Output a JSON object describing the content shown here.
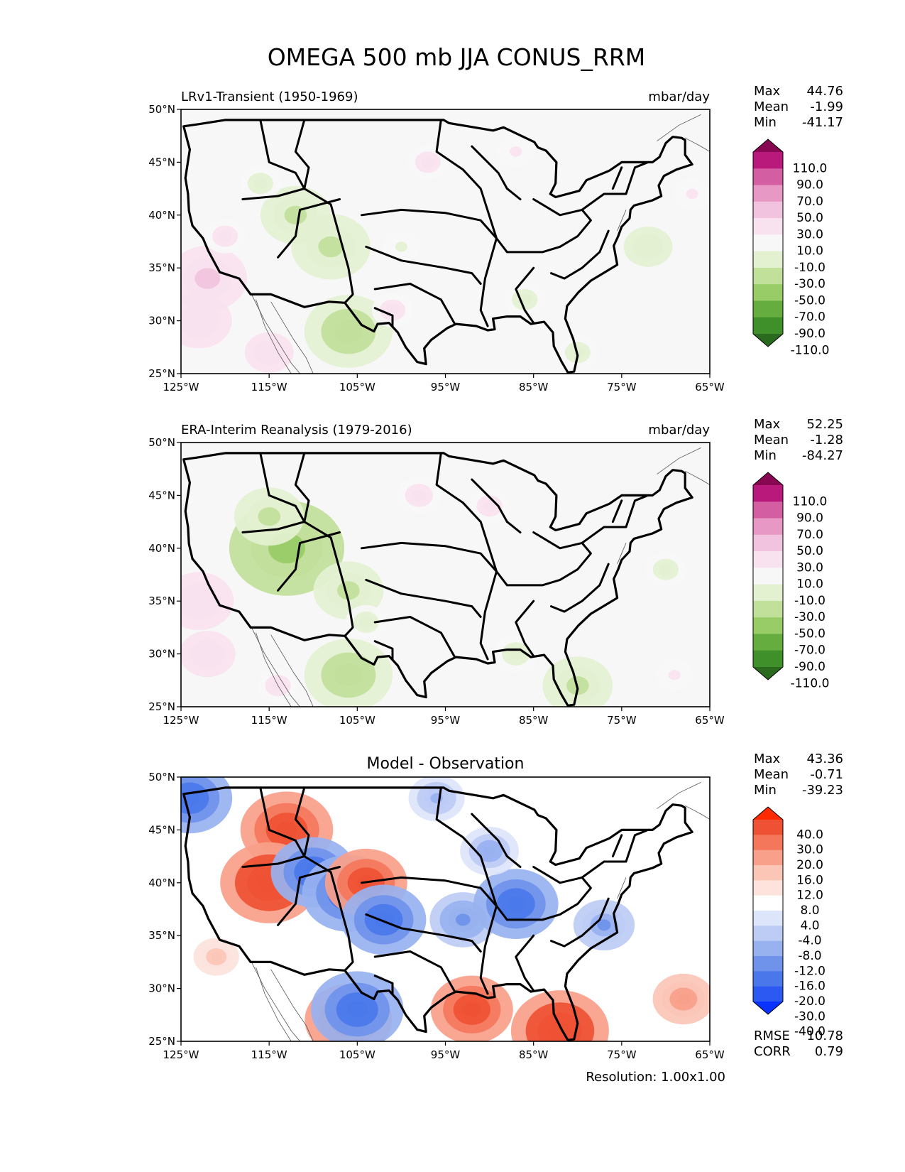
{
  "title": "OMEGA 500 mb JJA CONUS_RRM",
  "resolution": "Resolution: 1.00x1.00",
  "stat_labels": {
    "max": "Max",
    "mean": "Mean",
    "min": "Min",
    "rmse": "RMSE",
    "corr": "CORR"
  },
  "axes": {
    "lon_ticks": [
      "125°W",
      "115°W",
      "105°W",
      "95°W",
      "85°W",
      "75°W",
      "65°W"
    ],
    "lat_ticks": [
      "50°N",
      "45°N",
      "40°N",
      "35°N",
      "30°N",
      "25°N"
    ]
  },
  "colors": {
    "abs_cmap": [
      "#2a6a1f",
      "#3f8f2a",
      "#65ad3f",
      "#98cc67",
      "#c1e09a",
      "#e3f1d1",
      "#f7f7f7",
      "#f9e2ef",
      "#f2c3de",
      "#e898c4",
      "#d45ea2",
      "#b9197b",
      "#870753"
    ],
    "diff_cmap": [
      "#0a32ff",
      "#2b59f2",
      "#4a78ea",
      "#6f93eb",
      "#98b2f0",
      "#bdccf5",
      "#dde5fa",
      "#ffffff",
      "#fde3dc",
      "#fbc6b6",
      "#f8a08a",
      "#f4775c",
      "#ef5134",
      "#ff2a00"
    ],
    "land_line": "#000000",
    "coast_line": "#555555"
  },
  "chart_data": [
    {
      "type": "heatmap",
      "title": "LRv1-Transient (1950-1969)",
      "units": "mbar/day",
      "xlim": [
        -125,
        -65
      ],
      "ylim": [
        25,
        50
      ],
      "stats": {
        "max": "44.76",
        "mean": "-1.99",
        "min": "-41.17"
      },
      "colorbar_ticks": [
        "110.0",
        "90.0",
        "70.0",
        "50.0",
        "30.0",
        "10.0",
        "-10.0",
        "-30.0",
        "-50.0",
        "-70.0",
        "-90.0",
        "-110.0"
      ],
      "field": [
        {
          "lon": -122,
          "lat": 34,
          "value": 35
        },
        {
          "lon": -123,
          "lat": 30,
          "value": 28
        },
        {
          "lon": -115,
          "lat": 27,
          "value": 18
        },
        {
          "lon": -120,
          "lat": 38,
          "value": 14
        },
        {
          "lon": -112,
          "lat": 40,
          "value": -30
        },
        {
          "lon": -108,
          "lat": 37,
          "value": -35
        },
        {
          "lon": -106,
          "lat": 29,
          "value": -40
        },
        {
          "lon": -116,
          "lat": 43,
          "value": -14
        },
        {
          "lon": -100,
          "lat": 37,
          "value": -12
        },
        {
          "lon": -86,
          "lat": 32,
          "value": -14
        },
        {
          "lon": -72,
          "lat": 37,
          "value": -18
        },
        {
          "lon": -80,
          "lat": 27,
          "value": -14
        },
        {
          "lon": -97,
          "lat": 45,
          "value": 14
        },
        {
          "lon": -87,
          "lat": 46,
          "value": 12
        },
        {
          "lon": -67,
          "lat": 42,
          "value": 12
        },
        {
          "lon": -101,
          "lat": 31,
          "value": 14
        }
      ]
    },
    {
      "type": "heatmap",
      "title": "ERA-Interim Reanalysis (1979-2016)",
      "units": "mbar/day",
      "xlim": [
        -125,
        -65
      ],
      "ylim": [
        25,
        50
      ],
      "stats": {
        "max": "52.25",
        "mean": "-1.28",
        "min": "-84.27"
      },
      "colorbar_ticks": [
        "110.0",
        "90.0",
        "70.0",
        "50.0",
        "30.0",
        "10.0",
        "-10.0",
        "-30.0",
        "-50.0",
        "-70.0",
        "-90.0",
        "-110.0"
      ],
      "field": [
        {
          "lon": -123,
          "lat": 35,
          "value": 30
        },
        {
          "lon": -122,
          "lat": 30,
          "value": 22
        },
        {
          "lon": -114,
          "lat": 27,
          "value": 14
        },
        {
          "lon": -113,
          "lat": 40,
          "value": -55
        },
        {
          "lon": -115,
          "lat": 43,
          "value": -30
        },
        {
          "lon": -106,
          "lat": 36,
          "value": -30
        },
        {
          "lon": -106,
          "lat": 28,
          "value": -40
        },
        {
          "lon": -98,
          "lat": 45,
          "value": 16
        },
        {
          "lon": -90,
          "lat": 44,
          "value": 14
        },
        {
          "lon": -87,
          "lat": 30,
          "value": -16
        },
        {
          "lon": -80,
          "lat": 27,
          "value": -30
        },
        {
          "lon": -70,
          "lat": 38,
          "value": -14
        },
        {
          "lon": -69,
          "lat": 28,
          "value": 12
        },
        {
          "lon": -104,
          "lat": 33,
          "value": -14
        }
      ]
    },
    {
      "type": "heatmap",
      "title": "Model - Observation",
      "units": "",
      "xlim": [
        -125,
        -65
      ],
      "ylim": [
        25,
        50
      ],
      "stats": {
        "max": "43.36",
        "mean": "-0.71",
        "min": "-39.23",
        "rmse": "10.78",
        "corr": "0.79"
      },
      "colorbar_ticks": [
        "40.0",
        "30.0",
        "20.0",
        "16.0",
        "12.0",
        "8.0",
        "4.0",
        "-4.0",
        "-8.0",
        "-12.0",
        "-16.0",
        "-20.0",
        "-30.0",
        "-40.0"
      ],
      "field": [
        {
          "lon": -113,
          "lat": 45,
          "value": 28
        },
        {
          "lon": -115,
          "lat": 40,
          "value": 30
        },
        {
          "lon": -110,
          "lat": 41,
          "value": -25
        },
        {
          "lon": -106,
          "lat": 39,
          "value": -28
        },
        {
          "lon": -104,
          "lat": 40,
          "value": 24
        },
        {
          "lon": -102,
          "lat": 36.5,
          "value": -25
        },
        {
          "lon": -93,
          "lat": 36.5,
          "value": -18
        },
        {
          "lon": -87,
          "lat": 38,
          "value": -25
        },
        {
          "lon": -90,
          "lat": 43,
          "value": -15
        },
        {
          "lon": -77,
          "lat": 36,
          "value": -16
        },
        {
          "lon": -92,
          "lat": 28,
          "value": 24
        },
        {
          "lon": -82,
          "lat": 26,
          "value": 30
        },
        {
          "lon": -106,
          "lat": 27,
          "value": 26
        },
        {
          "lon": -105,
          "lat": 28,
          "value": -28
        },
        {
          "lon": -68,
          "lat": 29,
          "value": 16
        },
        {
          "lon": -124,
          "lat": 48,
          "value": -25
        },
        {
          "lon": -121,
          "lat": 33,
          "value": 10
        },
        {
          "lon": -96,
          "lat": 48,
          "value": -14
        }
      ]
    }
  ]
}
